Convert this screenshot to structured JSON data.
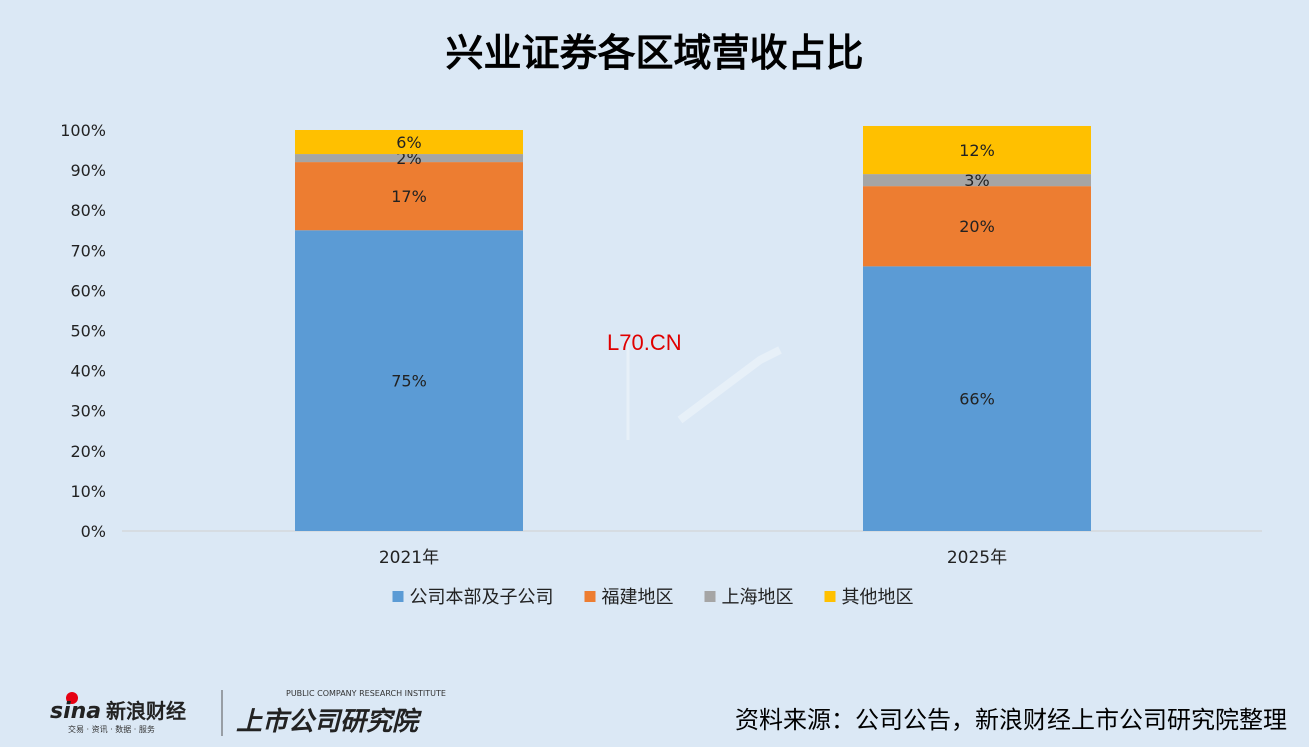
{
  "chart_data": {
    "type": "bar",
    "stacked": true,
    "percent": true,
    "title": "兴业证券各区域营收占比",
    "categories": [
      "2021年",
      "2025年"
    ],
    "series": [
      {
        "name": "公司本部及子公司",
        "values": [
          75,
          66
        ],
        "labels": [
          "75%",
          "66%"
        ],
        "color": "#5b9bd5"
      },
      {
        "name": "福建地区",
        "values": [
          17,
          20
        ],
        "labels": [
          "17%",
          "20%"
        ],
        "color": "#ed7d31"
      },
      {
        "name": "上海地区",
        "values": [
          2,
          3
        ],
        "labels": [
          "2%",
          "3%"
        ],
        "color": "#a5a5a5"
      },
      {
        "name": "其他地区",
        "values": [
          6,
          12
        ],
        "labels": [
          "6%",
          "12%"
        ],
        "color": "#ffc000"
      }
    ],
    "yticks": [
      "0%",
      "10%",
      "20%",
      "30%",
      "40%",
      "50%",
      "60%",
      "70%",
      "80%",
      "90%",
      "100%"
    ],
    "ylim": [
      0,
      100
    ],
    "grid": false,
    "legend": "bottom"
  },
  "watermark": "L70.CN",
  "source": "资料来源：公司公告，新浪财经上市公司研究院整理",
  "logo": {
    "sina": "sina",
    "sina_cn": "新浪财经",
    "sina_sub": "交易 · 资讯 · 数据 · 服务",
    "institute_en": "PUBLIC COMPANY RESEARCH INSTITUTE",
    "institute_cn": "上市公司研究院"
  }
}
